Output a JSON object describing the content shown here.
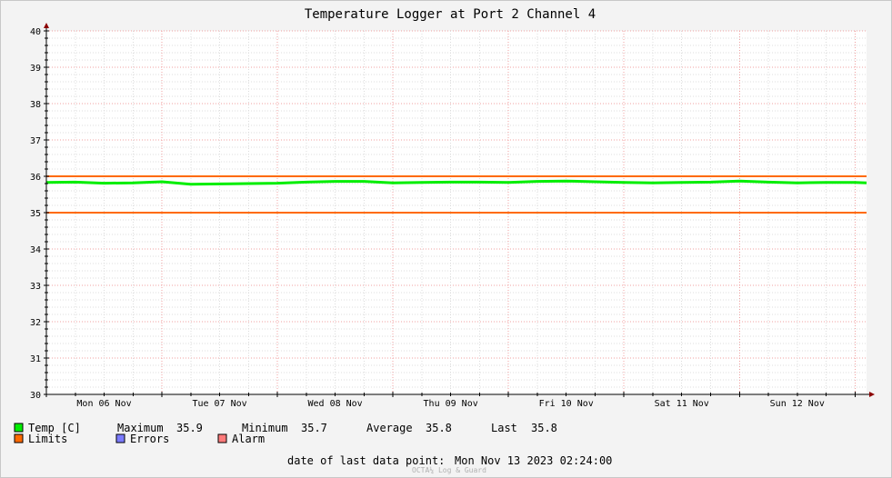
{
  "chart_data": {
    "type": "line",
    "title": "Temperature Logger at Port 2 Channel 4",
    "ylim": [
      30,
      40
    ],
    "y_ticks": [
      "30",
      "31",
      "32",
      "33",
      "34",
      "35",
      "36",
      "37",
      "38",
      "39",
      "40"
    ],
    "x_day_labels": [
      "Mon 06 Nov",
      "Tue 07 Nov",
      "Wed 08 Nov",
      "Thu 09 Nov",
      "Fri 10 Nov",
      "Sat 11 Nov",
      "Sun 12 Nov"
    ],
    "x_range_days": [
      0,
      7.1
    ],
    "series": [
      {
        "name": "Temp [C]",
        "color": "#00ee00",
        "x_days": [
          0,
          0.25,
          0.5,
          0.75,
          1.0,
          1.25,
          1.5,
          1.75,
          2.0,
          2.25,
          2.5,
          2.75,
          3.0,
          3.25,
          3.5,
          3.75,
          4.0,
          4.25,
          4.5,
          4.75,
          5.0,
          5.25,
          5.5,
          5.75,
          6.0,
          6.25,
          6.5,
          6.75,
          7.0,
          7.1
        ],
        "values": [
          35.83,
          35.84,
          35.81,
          35.82,
          35.85,
          35.78,
          35.79,
          35.8,
          35.81,
          35.84,
          35.86,
          35.86,
          35.82,
          35.83,
          35.84,
          35.84,
          35.83,
          35.86,
          35.87,
          35.85,
          35.83,
          35.82,
          35.83,
          35.84,
          35.87,
          35.84,
          35.82,
          35.83,
          35.83,
          35.82
        ]
      }
    ],
    "limits": {
      "name": "Limits",
      "color": "#ff6a00",
      "values": [
        35,
        36
      ]
    },
    "legend": {
      "errors_label": "Errors",
      "errors_color": "#7b7bff",
      "alarm_label": "Alarm",
      "alarm_color": "#ff7b7b"
    },
    "stats": {
      "maximum_label": "Maximum",
      "maximum": "35.9",
      "minimum_label": "Minimum",
      "minimum": "35.7",
      "average_label": "Average",
      "average": "35.8",
      "last_label": "Last",
      "last": "35.8"
    },
    "footer": {
      "last_point_label": "date of last data point:",
      "last_point_value": "Mon Nov 13 2023 02:24:00",
      "credit": "OCTA¼ Log & Guard"
    }
  }
}
